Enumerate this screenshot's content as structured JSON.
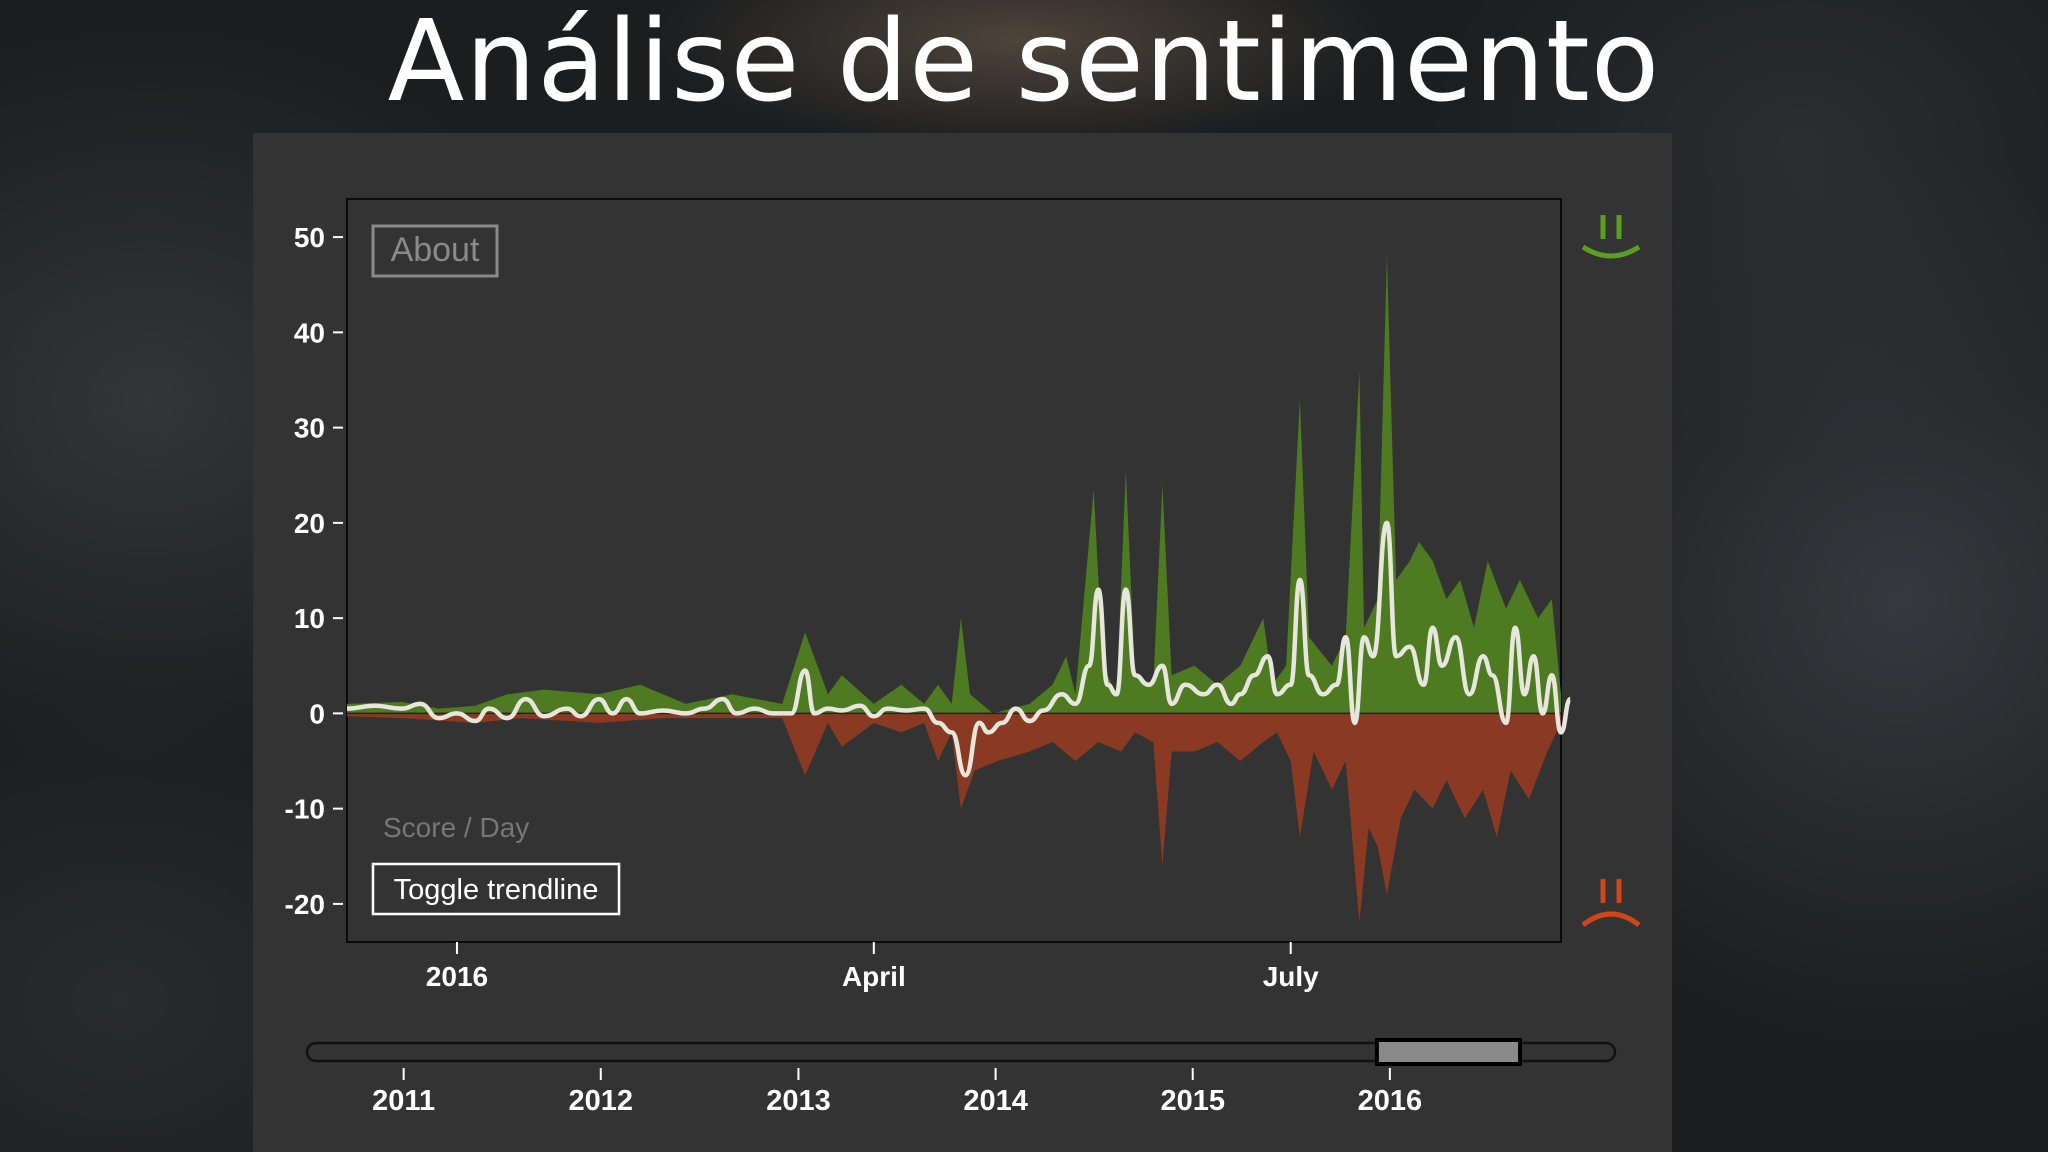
{
  "slide": {
    "title": "Análise de sentimento"
  },
  "chart": {
    "about_label": "About",
    "score_label": "Score / Day",
    "toggle_label": "Toggle trendline",
    "colors": {
      "positive": "#4e7a22",
      "negative": "#8a3a22",
      "trend": "#e6e6dc",
      "happy_icon": "#5aa01e",
      "sad_icon": "#d0451a",
      "plot_bg": "#333333",
      "panel_bg": "#333333"
    },
    "icons": {
      "top_right": "happy-face-icon",
      "bottom_right": "sad-face-icon"
    }
  },
  "chart_data": [
    {
      "type": "area",
      "title": "",
      "xlabel": "",
      "ylabel": "Score / Day",
      "ylim": [
        -24,
        54
      ],
      "yticks": [
        50,
        40,
        30,
        20,
        10,
        0,
        -10,
        -20
      ],
      "xlim": [
        "2015-12-08",
        "2016-08-29"
      ],
      "xticks": [
        {
          "date": "2016-01-01",
          "label": "2016"
        },
        {
          "date": "2016-04-01",
          "label": "April"
        },
        {
          "date": "2016-07-01",
          "label": "July"
        }
      ],
      "grid": false,
      "series": [
        {
          "kind": "positive-area",
          "points": [
            [
              "2015-12-08",
              1
            ],
            [
              "2015-12-20",
              1.2
            ],
            [
              "2015-12-28",
              0.5
            ],
            [
              "2016-01-05",
              0.8
            ],
            [
              "2016-01-12",
              2
            ],
            [
              "2016-01-20",
              2.5
            ],
            [
              "2016-02-01",
              2
            ],
            [
              "2016-02-10",
              3
            ],
            [
              "2016-02-20",
              1
            ],
            [
              "2016-03-01",
              2
            ],
            [
              "2016-03-12",
              1
            ],
            [
              "2016-03-17",
              8.5
            ],
            [
              "2016-03-22",
              2
            ],
            [
              "2016-03-25",
              4
            ],
            [
              "2016-04-01",
              1
            ],
            [
              "2016-04-07",
              3
            ],
            [
              "2016-04-12",
              1
            ],
            [
              "2016-04-15",
              3
            ],
            [
              "2016-04-18",
              1
            ],
            [
              "2016-04-20",
              10
            ],
            [
              "2016-04-22",
              2
            ],
            [
              "2016-04-27",
              0
            ],
            [
              "2016-05-05",
              1
            ],
            [
              "2016-05-10",
              3
            ],
            [
              "2016-05-13",
              6
            ],
            [
              "2016-05-15",
              2
            ],
            [
              "2016-05-19",
              23.5
            ],
            [
              "2016-05-21",
              5
            ],
            [
              "2016-05-24",
              2
            ],
            [
              "2016-05-26",
              25.5
            ],
            [
              "2016-05-28",
              4
            ],
            [
              "2016-06-01",
              3
            ],
            [
              "2016-06-03",
              24
            ],
            [
              "2016-06-05",
              4
            ],
            [
              "2016-06-10",
              5
            ],
            [
              "2016-06-15",
              3
            ],
            [
              "2016-06-20",
              5
            ],
            [
              "2016-06-25",
              10
            ],
            [
              "2016-06-27",
              3
            ],
            [
              "2016-06-30",
              5
            ],
            [
              "2016-07-03",
              33
            ],
            [
              "2016-07-05",
              8
            ],
            [
              "2016-07-10",
              5
            ],
            [
              "2016-07-13",
              8
            ],
            [
              "2016-07-16",
              36
            ],
            [
              "2016-07-17",
              9
            ],
            [
              "2016-07-20",
              12
            ],
            [
              "2016-07-22",
              48
            ],
            [
              "2016-07-24",
              14
            ],
            [
              "2016-07-27",
              16
            ],
            [
              "2016-07-29",
              18
            ],
            [
              "2016-08-01",
              16
            ],
            [
              "2016-08-04",
              12
            ],
            [
              "2016-08-07",
              14
            ],
            [
              "2016-08-10",
              9
            ],
            [
              "2016-08-13",
              16
            ],
            [
              "2016-08-17",
              11
            ],
            [
              "2016-08-20",
              14
            ],
            [
              "2016-08-24",
              10
            ],
            [
              "2016-08-27",
              12
            ],
            [
              "2016-08-29",
              2
            ]
          ]
        },
        {
          "kind": "negative-area",
          "points": [
            [
              "2015-12-08",
              -0.3
            ],
            [
              "2015-12-20",
              -0.5
            ],
            [
              "2016-01-05",
              -1
            ],
            [
              "2016-01-15",
              -0.5
            ],
            [
              "2016-02-01",
              -1
            ],
            [
              "2016-02-15",
              -0.5
            ],
            [
              "2016-03-01",
              -0.5
            ],
            [
              "2016-03-12",
              -0.5
            ],
            [
              "2016-03-17",
              -6.5
            ],
            [
              "2016-03-22",
              -1
            ],
            [
              "2016-03-25",
              -3.5
            ],
            [
              "2016-04-01",
              -1
            ],
            [
              "2016-04-07",
              -2
            ],
            [
              "2016-04-12",
              -1
            ],
            [
              "2016-04-15",
              -5
            ],
            [
              "2016-04-18",
              -2
            ],
            [
              "2016-04-20",
              -10
            ],
            [
              "2016-04-23",
              -6
            ],
            [
              "2016-04-28",
              -5
            ],
            [
              "2016-05-05",
              -4
            ],
            [
              "2016-05-10",
              -3
            ],
            [
              "2016-05-15",
              -5
            ],
            [
              "2016-05-20",
              -3
            ],
            [
              "2016-05-25",
              -4
            ],
            [
              "2016-05-28",
              -2
            ],
            [
              "2016-06-01",
              -3
            ],
            [
              "2016-06-03",
              -16
            ],
            [
              "2016-06-05",
              -4
            ],
            [
              "2016-06-10",
              -4
            ],
            [
              "2016-06-15",
              -3
            ],
            [
              "2016-06-20",
              -5
            ],
            [
              "2016-06-25",
              -3
            ],
            [
              "2016-06-28",
              -2
            ],
            [
              "2016-07-01",
              -5
            ],
            [
              "2016-07-03",
              -13
            ],
            [
              "2016-07-06",
              -4
            ],
            [
              "2016-07-10",
              -8
            ],
            [
              "2016-07-13",
              -5
            ],
            [
              "2016-07-16",
              -22
            ],
            [
              "2016-07-18",
              -12
            ],
            [
              "2016-07-20",
              -14
            ],
            [
              "2016-07-22",
              -19
            ],
            [
              "2016-07-25",
              -11
            ],
            [
              "2016-07-28",
              -8
            ],
            [
              "2016-08-01",
              -10
            ],
            [
              "2016-08-04",
              -7
            ],
            [
              "2016-08-08",
              -11
            ],
            [
              "2016-08-12",
              -8
            ],
            [
              "2016-08-15",
              -13
            ],
            [
              "2016-08-18",
              -6
            ],
            [
              "2016-08-22",
              -9
            ],
            [
              "2016-08-26",
              -4
            ],
            [
              "2016-08-29",
              -1
            ]
          ]
        },
        {
          "kind": "trendline",
          "points": [
            [
              "2015-12-08",
              0.5
            ],
            [
              "2015-12-14",
              0.8
            ],
            [
              "2015-12-20",
              0.5
            ],
            [
              "2015-12-24",
              1
            ],
            [
              "2015-12-28",
              -0.5
            ],
            [
              "2016-01-01",
              0
            ],
            [
              "2016-01-05",
              -0.8
            ],
            [
              "2016-01-08",
              0.5
            ],
            [
              "2016-01-12",
              -0.5
            ],
            [
              "2016-01-16",
              1.5
            ],
            [
              "2016-01-20",
              -0.3
            ],
            [
              "2016-01-25",
              0.5
            ],
            [
              "2016-01-28",
              -0.3
            ],
            [
              "2016-02-01",
              1.5
            ],
            [
              "2016-02-04",
              0
            ],
            [
              "2016-02-07",
              1.5
            ],
            [
              "2016-02-10",
              0
            ],
            [
              "2016-02-15",
              0.3
            ],
            [
              "2016-02-20",
              0
            ],
            [
              "2016-02-24",
              0.5
            ],
            [
              "2016-02-28",
              1.5
            ],
            [
              "2016-03-02",
              0
            ],
            [
              "2016-03-06",
              0.5
            ],
            [
              "2016-03-10",
              0
            ],
            [
              "2016-03-14",
              0
            ],
            [
              "2016-03-17",
              4.5
            ],
            [
              "2016-03-19",
              0
            ],
            [
              "2016-03-22",
              0.5
            ],
            [
              "2016-03-25",
              0.3
            ],
            [
              "2016-03-29",
              0.8
            ],
            [
              "2016-04-01",
              -0.3
            ],
            [
              "2016-04-04",
              0.5
            ],
            [
              "2016-04-08",
              0.3
            ],
            [
              "2016-04-12",
              0.5
            ],
            [
              "2016-04-15",
              -1
            ],
            [
              "2016-04-18",
              -2
            ],
            [
              "2016-04-21",
              -6.5
            ],
            [
              "2016-04-24",
              -1
            ],
            [
              "2016-04-26",
              -2
            ],
            [
              "2016-04-29",
              -1
            ],
            [
              "2016-05-02",
              0.5
            ],
            [
              "2016-05-05",
              -0.8
            ],
            [
              "2016-05-08",
              0.3
            ],
            [
              "2016-05-12",
              2
            ],
            [
              "2016-05-15",
              1
            ],
            [
              "2016-05-18",
              5
            ],
            [
              "2016-05-20",
              13
            ],
            [
              "2016-05-22",
              3
            ],
            [
              "2016-05-24",
              2
            ],
            [
              "2016-05-26",
              13
            ],
            [
              "2016-05-28",
              4
            ],
            [
              "2016-05-31",
              3
            ],
            [
              "2016-06-03",
              5
            ],
            [
              "2016-06-05",
              1
            ],
            [
              "2016-06-08",
              3
            ],
            [
              "2016-06-12",
              2
            ],
            [
              "2016-06-15",
              3
            ],
            [
              "2016-06-18",
              1
            ],
            [
              "2016-06-20",
              2
            ],
            [
              "2016-06-23",
              4
            ],
            [
              "2016-06-26",
              6
            ],
            [
              "2016-06-28",
              2
            ],
            [
              "2016-07-01",
              3
            ],
            [
              "2016-07-03",
              14
            ],
            [
              "2016-07-05",
              4
            ],
            [
              "2016-07-08",
              2
            ],
            [
              "2016-07-11",
              3
            ],
            [
              "2016-07-13",
              8
            ],
            [
              "2016-07-15",
              -1
            ],
            [
              "2016-07-17",
              8
            ],
            [
              "2016-07-19",
              6
            ],
            [
              "2016-07-22",
              20
            ],
            [
              "2016-07-24",
              6
            ],
            [
              "2016-07-27",
              7
            ],
            [
              "2016-07-30",
              3
            ],
            [
              "2016-08-01",
              9
            ],
            [
              "2016-08-03",
              5
            ],
            [
              "2016-08-06",
              8
            ],
            [
              "2016-08-09",
              2
            ],
            [
              "2016-08-12",
              6
            ],
            [
              "2016-08-14",
              4
            ],
            [
              "2016-08-17",
              -1
            ],
            [
              "2016-08-19",
              9
            ],
            [
              "2016-08-21",
              2
            ],
            [
              "2016-08-23",
              6
            ],
            [
              "2016-08-25",
              0
            ],
            [
              "2016-08-27",
              4
            ],
            [
              "2016-08-29",
              -2
            ],
            [
              "2016-08-31",
              1.5
            ]
          ]
        }
      ]
    },
    {
      "type": "line",
      "role": "range-navigator",
      "xticks": [
        "2011",
        "2012",
        "2013",
        "2014",
        "2015",
        "2016"
      ],
      "xlim": [
        "2010-08-01",
        "2016-12-31"
      ],
      "brush_range": [
        "2015-12-08",
        "2016-08-29"
      ]
    }
  ]
}
